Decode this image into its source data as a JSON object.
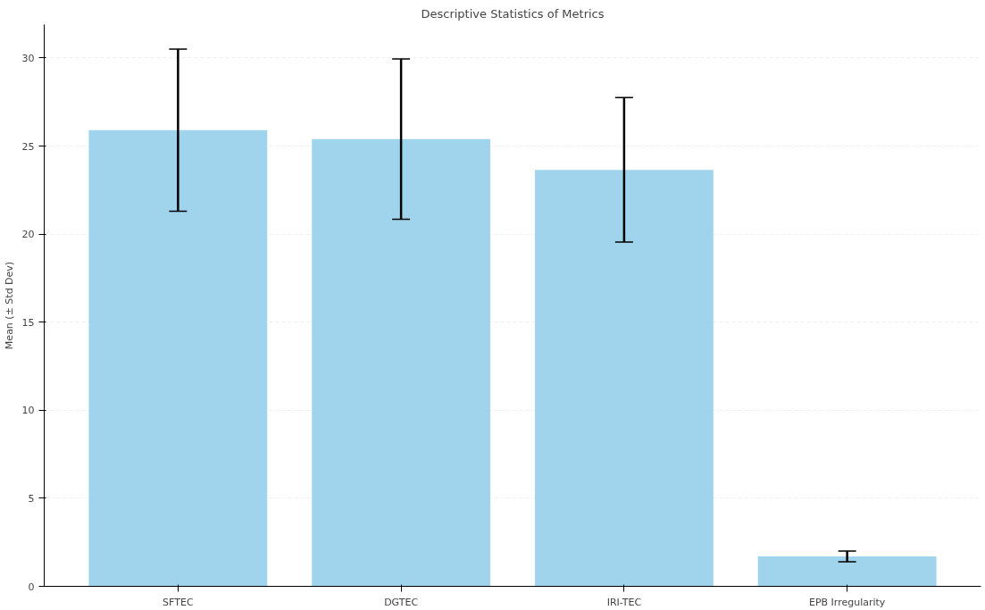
{
  "chart_data": {
    "type": "bar",
    "title": "Descriptive Statistics of Metrics",
    "ylabel": "Mean (± Std Dev)",
    "categories": [
      "SFTEC",
      "DGTEC",
      "IRI-TEC",
      "EPB Irregularity"
    ],
    "values": [
      25.9,
      25.4,
      23.65,
      1.7
    ],
    "errors": [
      4.6,
      4.55,
      4.1,
      0.3
    ],
    "color": "#9fd4ec",
    "ylim": [
      0,
      31.9
    ],
    "yticks": [
      0,
      5,
      10,
      15,
      20,
      25,
      30
    ],
    "grid": "y"
  }
}
